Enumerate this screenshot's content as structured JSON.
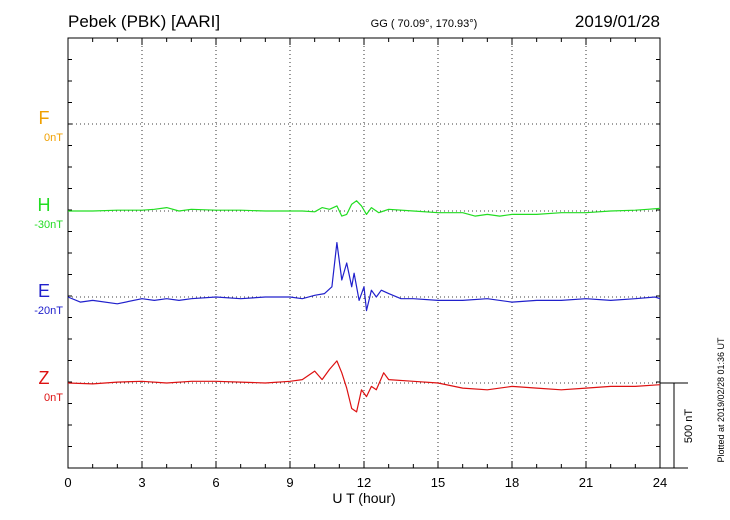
{
  "chart_data": {
    "type": "line",
    "title": "Pebek (PBK)  [AARI]",
    "coords": "GG ( 70.09°, 170.93°)",
    "date": "2019/01/28",
    "xlabel": "U T (hour)",
    "xlim": [
      0,
      24
    ],
    "xticks": [
      "0",
      "3",
      "6",
      "9",
      "12",
      "15",
      "18",
      "21",
      "24"
    ],
    "scale_label": "500 nT",
    "plotted_note": "Plotted at 2019/02/28 01:36 UT",
    "grid": true,
    "series": [
      {
        "name": "F",
        "offset": "0nT",
        "color": "#f0a000",
        "x": [],
        "y": []
      },
      {
        "name": "H",
        "offset": "-30nT",
        "color": "#22dd22",
        "x": [
          0,
          1,
          2,
          3,
          3.5,
          4,
          4.5,
          5,
          6,
          7,
          8,
          9,
          9.5,
          10,
          10.3,
          10.6,
          10.9,
          11.1,
          11.3,
          11.5,
          11.7,
          11.9,
          12.1,
          12.3,
          12.6,
          13,
          14,
          15,
          16,
          16.5,
          17,
          17.5,
          18,
          19,
          20,
          21,
          22,
          23,
          23.5,
          24
        ],
        "y": [
          0,
          0,
          5,
          5,
          10,
          20,
          0,
          10,
          5,
          5,
          0,
          0,
          0,
          -5,
          20,
          10,
          30,
          -30,
          -20,
          40,
          60,
          30,
          -20,
          20,
          -10,
          10,
          0,
          -10,
          -10,
          -30,
          -20,
          -30,
          -20,
          -20,
          -10,
          -10,
          0,
          5,
          10,
          15
        ]
      },
      {
        "name": "E",
        "offset": "-20nT",
        "color": "#2020cc",
        "x": [
          0,
          0.5,
          1,
          2,
          3,
          3.5,
          4,
          4.5,
          5,
          6,
          7,
          8,
          9,
          9.5,
          10,
          10.4,
          10.7,
          10.9,
          11.1,
          11.3,
          11.5,
          11.6,
          11.8,
          12,
          12.1,
          12.3,
          12.5,
          12.7,
          13,
          13.5,
          14,
          15,
          16,
          17,
          18,
          19,
          20,
          21,
          22,
          23,
          23.8,
          24
        ],
        "y": [
          0,
          -30,
          -20,
          -40,
          -10,
          -20,
          -10,
          -20,
          -10,
          0,
          -10,
          0,
          0,
          -10,
          10,
          20,
          60,
          320,
          100,
          200,
          60,
          140,
          -20,
          60,
          -80,
          40,
          0,
          40,
          20,
          -10,
          -10,
          -20,
          -20,
          -10,
          -30,
          -20,
          -20,
          -10,
          -20,
          -10,
          0,
          -10
        ]
      },
      {
        "name": "Z",
        "offset": "0nT",
        "color": "#dd1111",
        "x": [
          0,
          1,
          2,
          3,
          4,
          5,
          6,
          7,
          8,
          9,
          9.5,
          10,
          10.3,
          10.6,
          10.9,
          11.1,
          11.3,
          11.5,
          11.7,
          11.9,
          12.1,
          12.3,
          12.5,
          12.8,
          13,
          14,
          15,
          16,
          17,
          18,
          19,
          20,
          21,
          22,
          23,
          24
        ],
        "y": [
          0,
          -5,
          5,
          10,
          0,
          10,
          10,
          5,
          0,
          10,
          20,
          70,
          20,
          80,
          130,
          60,
          -30,
          -150,
          -170,
          -40,
          -80,
          -20,
          -40,
          60,
          20,
          10,
          0,
          -30,
          -40,
          -20,
          -30,
          -40,
          -30,
          -20,
          -20,
          -10
        ]
      }
    ]
  }
}
